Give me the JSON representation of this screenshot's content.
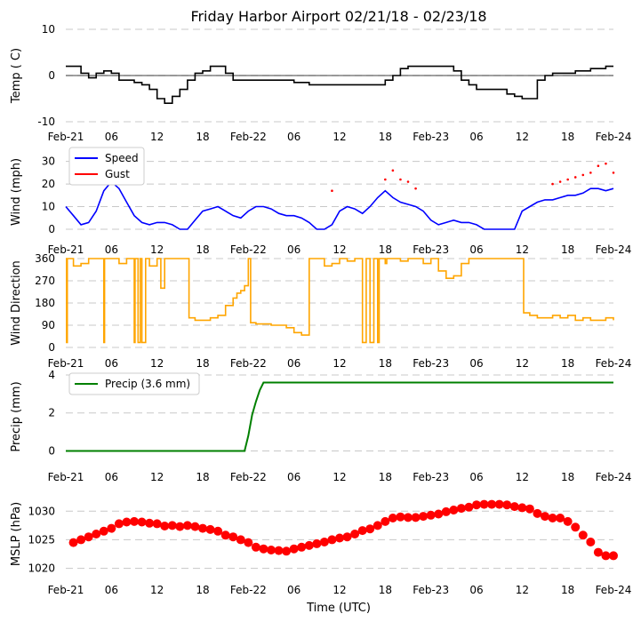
{
  "figure": {
    "title": "Friday Harbor Airport 02/21/18 - 02/23/18",
    "xlabel": "Time (UTC)",
    "x_tick_labels": [
      "Feb-21",
      "06",
      "12",
      "18",
      "Feb-22",
      "06",
      "12",
      "18",
      "Feb-23",
      "06",
      "12",
      "18",
      "Feb-24"
    ]
  },
  "chart_data": [
    {
      "id": "temp",
      "type": "line",
      "ylabel": "Temp ( C)",
      "ylim": [
        -10,
        10
      ],
      "yticks": [
        -10,
        0,
        10
      ],
      "zero_line": true,
      "color": "#000000",
      "x_unit": "hours since 2018-02-21 00:00 UTC",
      "xlim": [
        0,
        72
      ],
      "series": [
        {
          "name": "Temp",
          "x": [
            0,
            1,
            2,
            3,
            4,
            5,
            6,
            7,
            8,
            9,
            10,
            11,
            12,
            13,
            14,
            15,
            16,
            17,
            18,
            19,
            20,
            21,
            22,
            23,
            24,
            25,
            26,
            27,
            28,
            29,
            30,
            31,
            32,
            33,
            34,
            35,
            36,
            37,
            38,
            39,
            40,
            41,
            42,
            43,
            44,
            45,
            46,
            47,
            48,
            49,
            50,
            51,
            52,
            53,
            54,
            55,
            56,
            57,
            58,
            59,
            60,
            61,
            62,
            63,
            64,
            65,
            66,
            67,
            68,
            69,
            70,
            71,
            72
          ],
          "values": [
            2,
            2,
            0.5,
            -0.5,
            0.5,
            1,
            0.5,
            -1,
            -1,
            -1.5,
            -2,
            -3,
            -5,
            -6,
            -4.5,
            -3,
            -1,
            0.5,
            1,
            2,
            2,
            0.5,
            -1,
            -1,
            -1,
            -1,
            -1,
            -1,
            -1,
            -1,
            -1.5,
            -1.5,
            -2,
            -2,
            -2,
            -2,
            -2,
            -2,
            -2,
            -2,
            -2,
            -2,
            -1,
            0,
            1.5,
            2,
            2,
            2,
            2,
            2,
            2,
            1,
            -1,
            -2,
            -3,
            -3,
            -3,
            -3,
            -4,
            -4.5,
            -5,
            -5,
            -1,
            0,
            0.5,
            0.5,
            0.5,
            1,
            1,
            1.5,
            1.5,
            2,
            2
          ]
        }
      ]
    },
    {
      "id": "wind",
      "type": "line",
      "ylabel": "Wind (mph)",
      "ylim": [
        0,
        33
      ],
      "yticks": [
        0,
        10,
        20,
        30
      ],
      "legend_position": "top-left",
      "x_unit": "hours since 2018-02-21 00:00 UTC",
      "xlim": [
        0,
        72
      ],
      "series": [
        {
          "name": "Speed",
          "color": "#0000ff",
          "x": [
            0,
            1,
            2,
            3,
            4,
            5,
            6,
            7,
            8,
            9,
            10,
            11,
            12,
            13,
            14,
            15,
            16,
            17,
            18,
            19,
            20,
            21,
            22,
            23,
            24,
            25,
            26,
            27,
            28,
            29,
            30,
            31,
            32,
            33,
            34,
            35,
            36,
            37,
            38,
            39,
            40,
            41,
            42,
            43,
            44,
            45,
            46,
            47,
            48,
            49,
            50,
            51,
            52,
            53,
            54,
            55,
            56,
            57,
            58,
            59,
            60,
            61,
            62,
            63,
            64,
            65,
            66,
            67,
            68,
            69,
            70,
            71,
            72
          ],
          "values": [
            10,
            6,
            2,
            3,
            8,
            17,
            21,
            18,
            12,
            6,
            3,
            2,
            3,
            3,
            2,
            0,
            0,
            4,
            8,
            9,
            10,
            8,
            6,
            5,
            8,
            10,
            10,
            9,
            7,
            6,
            6,
            5,
            3,
            0,
            0,
            2,
            8,
            10,
            9,
            7,
            10,
            14,
            17,
            14,
            12,
            11,
            10,
            8,
            4,
            2,
            3,
            4,
            3,
            3,
            2,
            0,
            0,
            0,
            0,
            0,
            8,
            10,
            12,
            13,
            13,
            14,
            15,
            15,
            16,
            18,
            18,
            17,
            18
          ]
        },
        {
          "name": "Gust",
          "color": "#ff0000",
          "x": [
            35,
            42,
            43,
            44,
            45,
            46,
            64,
            65,
            66,
            67,
            68,
            69,
            70,
            71,
            72
          ],
          "values": [
            17,
            22,
            26,
            22,
            21,
            18,
            20,
            21,
            22,
            23,
            24,
            25,
            28,
            29,
            25
          ]
        }
      ]
    },
    {
      "id": "direction",
      "type": "line",
      "ylabel": "Wind Direction",
      "ylim": [
        0,
        360
      ],
      "yticks": [
        0,
        90,
        180,
        270,
        360
      ],
      "color": "#ffa500",
      "x_unit": "hours since 2018-02-21 00:00 UTC",
      "xlim": [
        0,
        72
      ],
      "series": [
        {
          "name": "Direction",
          "x": [
            0,
            0.1,
            0.2,
            1,
            2,
            3,
            4,
            4.9,
            5,
            5.1,
            6,
            7,
            8,
            8.9,
            9,
            9.1,
            9.5,
            9.8,
            10,
            10.5,
            11,
            12,
            12.5,
            13,
            14,
            15,
            16,
            16.2,
            17,
            18,
            19,
            20,
            21,
            22,
            22.5,
            23,
            23.5,
            24,
            24.3,
            25,
            26,
            27,
            28,
            29,
            30,
            31,
            31.5,
            32,
            33,
            34,
            35,
            36,
            37,
            38,
            38.9,
            39,
            39.5,
            40,
            40.5,
            41,
            41.2,
            41.5,
            42,
            42.2,
            43,
            44,
            45,
            46,
            47,
            48,
            49,
            50,
            51,
            52,
            53,
            54,
            55,
            56,
            57,
            58,
            59,
            60,
            60.2,
            61,
            62,
            63,
            64,
            65,
            66,
            67,
            68,
            69,
            70,
            71,
            72
          ],
          "values": [
            360,
            20,
            360,
            330,
            340,
            360,
            360,
            360,
            20,
            360,
            360,
            340,
            360,
            360,
            20,
            360,
            20,
            360,
            20,
            360,
            330,
            360,
            240,
            360,
            360,
            360,
            360,
            120,
            110,
            110,
            120,
            130,
            170,
            200,
            220,
            230,
            250,
            360,
            100,
            95,
            95,
            90,
            90,
            80,
            60,
            50,
            50,
            360,
            360,
            330,
            340,
            360,
            350,
            360,
            360,
            20,
            360,
            20,
            360,
            20,
            360,
            360,
            340,
            360,
            360,
            350,
            360,
            360,
            340,
            360,
            310,
            280,
            290,
            340,
            360,
            360,
            360,
            360,
            360,
            360,
            360,
            360,
            140,
            130,
            120,
            120,
            130,
            120,
            130,
            110,
            120,
            110,
            110,
            120,
            110
          ]
        }
      ]
    },
    {
      "id": "precip",
      "type": "line",
      "ylabel": "Precip (mm)",
      "ylim": [
        -0.4,
        4
      ],
      "yticks": [
        0,
        2,
        4
      ],
      "color": "#008000",
      "legend_position": "top-left",
      "x_unit": "hours since 2018-02-21 00:00 UTC",
      "xlim": [
        0,
        72
      ],
      "series": [
        {
          "name": "Precip (3.6 mm)",
          "x": [
            0,
            23.5,
            24,
            24.5,
            25,
            25.5,
            26,
            72
          ],
          "values": [
            0,
            0,
            0.8,
            1.9,
            2.6,
            3.2,
            3.6,
            3.6
          ]
        }
      ]
    },
    {
      "id": "mslp",
      "type": "scatter",
      "ylabel": "MSLP (hPa)",
      "ylim": [
        1019,
        1033
      ],
      "yticks": [
        1020,
        1025,
        1030
      ],
      "color": "#ff0000",
      "x_unit": "hours since 2018-02-21 00:00 UTC",
      "xlim": [
        0,
        72
      ],
      "series": [
        {
          "name": "MSLP",
          "x": [
            1,
            2,
            3,
            4,
            5,
            6,
            7,
            8,
            9,
            10,
            11,
            12,
            13,
            14,
            15,
            16,
            17,
            18,
            19,
            20,
            21,
            22,
            23,
            24,
            25,
            26,
            27,
            28,
            29,
            30,
            31,
            32,
            33,
            34,
            35,
            36,
            37,
            38,
            39,
            40,
            41,
            42,
            43,
            44,
            45,
            46,
            47,
            48,
            49,
            50,
            51,
            52,
            53,
            54,
            55,
            56,
            57,
            58,
            59,
            60,
            61,
            62,
            63,
            64,
            65,
            66,
            67,
            68,
            69,
            70,
            71,
            72
          ],
          "values": [
            1024.5,
            1025,
            1025.5,
            1026,
            1026.5,
            1027,
            1027.8,
            1028.1,
            1028.2,
            1028.1,
            1027.9,
            1027.8,
            1027.4,
            1027.5,
            1027.3,
            1027.5,
            1027.3,
            1027,
            1026.8,
            1026.5,
            1025.8,
            1025.5,
            1025,
            1024.5,
            1023.7,
            1023.4,
            1023.2,
            1023.1,
            1023,
            1023.4,
            1023.7,
            1024,
            1024.3,
            1024.6,
            1025,
            1025.3,
            1025.5,
            1026,
            1026.6,
            1026.9,
            1027.5,
            1028.2,
            1028.8,
            1029,
            1028.9,
            1028.9,
            1029.1,
            1029.3,
            1029.5,
            1029.9,
            1030.2,
            1030.5,
            1030.7,
            1031.1,
            1031.2,
            1031.2,
            1031.2,
            1031.1,
            1030.8,
            1030.6,
            1030.4,
            1029.6,
            1029.1,
            1028.8,
            1028.8,
            1028.2,
            1027.2,
            1025.8,
            1024.6,
            1022.8,
            1022.2,
            1022.2
          ]
        }
      ]
    }
  ]
}
